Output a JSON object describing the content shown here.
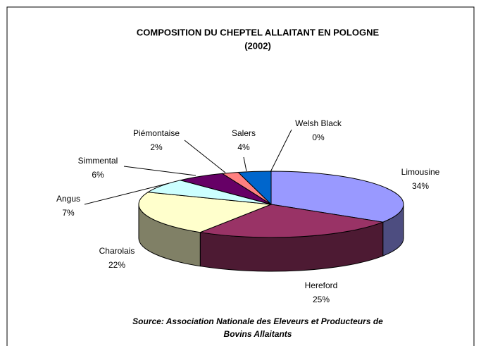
{
  "chart_data": {
    "type": "pie3d",
    "title": "COMPOSITION DU CHEPTEL ALLAITANT EN POLOGNE",
    "subtitle": "(2002)",
    "categories": [
      "Limousine",
      "Hereford",
      "Charolais",
      "Angus",
      "Simmental",
      "Piémontaise",
      "Salers",
      "Welsh Black"
    ],
    "values": [
      34,
      25,
      22,
      7,
      6,
      2,
      4,
      0
    ],
    "value_labels": [
      "34%",
      "25%",
      "22%",
      "7%",
      "6%",
      "2%",
      "4%",
      "0%"
    ],
    "colors": [
      "#9999ff",
      "#993366",
      "#ffffcc",
      "#ccffff",
      "#660066",
      "#ff8080",
      "#0066cc",
      "#ccccff"
    ],
    "source": [
      "Source: Association Nationale des Eleveurs et Producteurs de",
      "Bovins Allaitants"
    ]
  }
}
